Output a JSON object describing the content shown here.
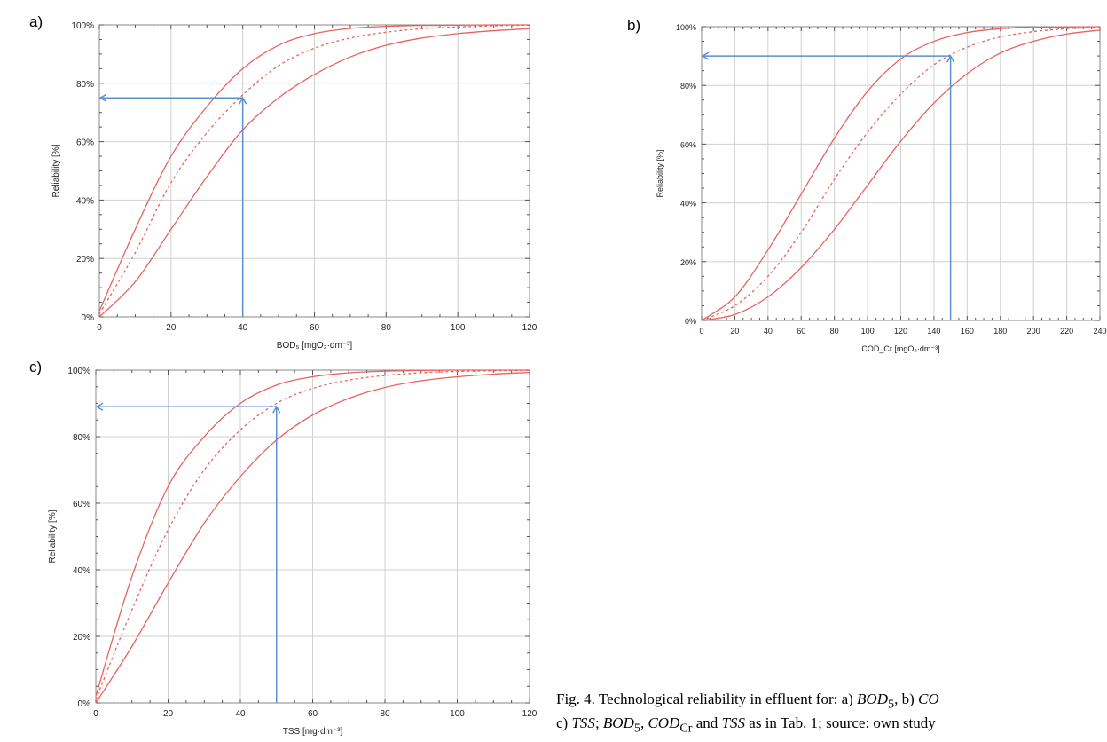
{
  "panels": [
    {
      "label": "a)"
    },
    {
      "label": "b)"
    },
    {
      "label": "c)"
    }
  ],
  "caption": {
    "line1_prefix": "Fig. 4. Technological reliability in effluent for: a) ",
    "bod": "BOD",
    "bod_sub": "5",
    "mid": ", b) ",
    "cod_trunc": "CO",
    "line2_a": "c) ",
    "tss": "TSS",
    "sep1": "; ",
    "bod2": "BOD",
    "bod2_sub": "5",
    "sep2": ", ",
    "cod": "COD",
    "cod_sub": "Cr",
    "and": " and ",
    "tss2": "TSS",
    "tail": " as in Tab. 1; source: own study"
  },
  "colors": {
    "curve": "#e8625f",
    "arrow": "#5b8fd1",
    "grid": "#d0d0d0",
    "frame": "#8a8a8a"
  },
  "chart_data": [
    {
      "type": "line",
      "xlabel": "BOD₅ [mgO₂·dm⁻³]",
      "ylabel": "Reliability [%]",
      "xlim": [
        0,
        120
      ],
      "ylim": [
        0,
        100
      ],
      "x_ticks": [
        "0",
        "20",
        "40",
        "60",
        "80",
        "100",
        "120"
      ],
      "y_ticks": [
        "0%",
        "20%",
        "40%",
        "60%",
        "80%",
        "100%"
      ],
      "grid": true,
      "series": [
        {
          "style": "solid",
          "x": [
            0,
            10,
            20,
            30,
            40,
            50,
            60,
            70,
            80,
            90,
            100,
            110,
            120
          ],
          "y": [
            2,
            30,
            55,
            72,
            85,
            93,
            97,
            98.8,
            99.5,
            99.8,
            99.9,
            100,
            100
          ]
        },
        {
          "style": "dashed",
          "x": [
            0,
            10,
            20,
            30,
            40,
            50,
            60,
            70,
            80,
            90,
            100,
            110,
            120
          ],
          "y": [
            1,
            22,
            46,
            63,
            76,
            86,
            92,
            95.5,
            97.5,
            98.7,
            99.3,
            99.7,
            99.9
          ]
        },
        {
          "style": "solid",
          "x": [
            0,
            10,
            20,
            30,
            40,
            50,
            60,
            70,
            80,
            90,
            100,
            110,
            120
          ],
          "y": [
            0,
            12,
            30,
            48,
            64,
            75,
            83,
            89,
            93,
            95.5,
            97,
            98,
            98.7
          ]
        }
      ],
      "reading": {
        "x": 40,
        "y": 75
      }
    },
    {
      "type": "line",
      "xlabel": "COD_Cr [mgO₂·dm⁻³]",
      "ylabel": "Reliability [%]",
      "xlim": [
        0,
        240
      ],
      "ylim": [
        0,
        100
      ],
      "x_ticks": [
        "0",
        "20",
        "40",
        "60",
        "80",
        "100",
        "120",
        "140",
        "160",
        "180",
        "200",
        "220",
        "240"
      ],
      "y_ticks": [
        "0%",
        "20%",
        "40%",
        "60%",
        "80%",
        "100%"
      ],
      "grid": true,
      "series": [
        {
          "style": "solid",
          "x": [
            0,
            20,
            40,
            60,
            80,
            100,
            120,
            140,
            160,
            180,
            200,
            220,
            240
          ],
          "y": [
            0,
            8,
            24,
            43,
            62,
            78,
            89,
            95,
            98,
            99.3,
            99.8,
            99.9,
            100
          ]
        },
        {
          "style": "dashed",
          "x": [
            0,
            20,
            40,
            60,
            80,
            100,
            120,
            140,
            160,
            180,
            200,
            220,
            240
          ],
          "y": [
            0,
            5,
            15,
            30,
            48,
            64,
            77,
            87,
            93,
            96.5,
            98.3,
            99.3,
            99.7
          ]
        },
        {
          "style": "solid",
          "x": [
            0,
            20,
            40,
            60,
            80,
            100,
            120,
            140,
            160,
            180,
            200,
            220,
            240
          ],
          "y": [
            0,
            2,
            8,
            18,
            31,
            46,
            61,
            74,
            84,
            91,
            95,
            97.5,
            98.8
          ]
        }
      ],
      "reading": {
        "x": 150,
        "y": 90
      }
    },
    {
      "type": "line",
      "xlabel": "TSS [mg·dm⁻³]",
      "ylabel": "Reliability [%]",
      "xlim": [
        0,
        120
      ],
      "ylim": [
        0,
        100
      ],
      "x_ticks": [
        "0",
        "20",
        "40",
        "60",
        "80",
        "100",
        "120"
      ],
      "y_ticks": [
        "0%",
        "20%",
        "40%",
        "60%",
        "80%",
        "100%"
      ],
      "grid": true,
      "series": [
        {
          "style": "solid",
          "x": [
            0,
            10,
            20,
            30,
            40,
            50,
            60,
            70,
            80,
            90,
            100,
            110,
            120
          ],
          "y": [
            2,
            38,
            65,
            80,
            90,
            95.5,
            98,
            99.2,
            99.7,
            99.9,
            100,
            100,
            100
          ]
        },
        {
          "style": "dashed",
          "x": [
            0,
            10,
            20,
            30,
            40,
            50,
            60,
            70,
            80,
            90,
            100,
            110,
            120
          ],
          "y": [
            1,
            28,
            52,
            70,
            82,
            90,
            94.5,
            97,
            98.4,
            99.2,
            99.6,
            99.8,
            99.9
          ]
        },
        {
          "style": "solid",
          "x": [
            0,
            10,
            20,
            30,
            40,
            50,
            60,
            70,
            80,
            90,
            100,
            110,
            120
          ],
          "y": [
            0,
            17,
            36,
            54,
            68,
            79,
            86.5,
            91.5,
            94.8,
            96.8,
            98,
            98.8,
            99.3
          ]
        }
      ],
      "reading": {
        "x": 50,
        "y": 89
      }
    }
  ]
}
